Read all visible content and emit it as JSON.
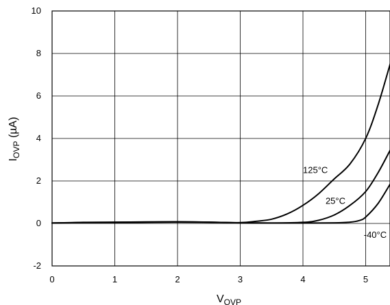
{
  "chart_data": {
    "type": "line",
    "title": "",
    "xlabel": {
      "main": "V",
      "sub": "OVP"
    },
    "ylabel": {
      "main": "I",
      "sub": "OVP",
      "suffix": " (µA)"
    },
    "xlim": [
      0,
      5.4
    ],
    "ylim": [
      -2,
      10
    ],
    "grid": true,
    "x_ticks": [
      0,
      1,
      2,
      3,
      4,
      5
    ],
    "y_ticks": [
      -2,
      0,
      2,
      4,
      6,
      8,
      10
    ],
    "series": [
      {
        "name": "125°C",
        "x": [
          0,
          0.5,
          1,
          1.5,
          2,
          2.5,
          3,
          3.25,
          3.5,
          3.75,
          4,
          4.25,
          4.5,
          4.75,
          5,
          5.2,
          5.4
        ],
        "y": [
          0.02,
          0.05,
          0.06,
          0.07,
          0.08,
          0.06,
          0.04,
          0.1,
          0.2,
          0.45,
          0.85,
          1.4,
          2.1,
          2.8,
          4.0,
          5.6,
          7.6
        ]
      },
      {
        "name": "25°C",
        "x": [
          0,
          0.5,
          1,
          1.5,
          2,
          2.5,
          3,
          3.5,
          4,
          4.25,
          4.5,
          4.75,
          5,
          5.2,
          5.4
        ],
        "y": [
          0.02,
          0.04,
          0.05,
          0.06,
          0.07,
          0.06,
          0.03,
          0.02,
          0.05,
          0.15,
          0.4,
          0.85,
          1.5,
          2.4,
          3.5
        ]
      },
      {
        "name": "-40°C",
        "x": [
          0,
          0.5,
          1,
          1.5,
          2,
          2.5,
          3,
          3.5,
          4,
          4.5,
          4.75,
          4.9,
          5,
          5.2,
          5.4
        ],
        "y": [
          0.02,
          0.04,
          0.04,
          0.05,
          0.06,
          0.05,
          0.03,
          0.02,
          0.02,
          0.03,
          0.06,
          0.14,
          0.3,
          0.95,
          1.9
        ]
      }
    ],
    "annotations": [
      "125°C",
      "25°C",
      "-40°C"
    ]
  }
}
